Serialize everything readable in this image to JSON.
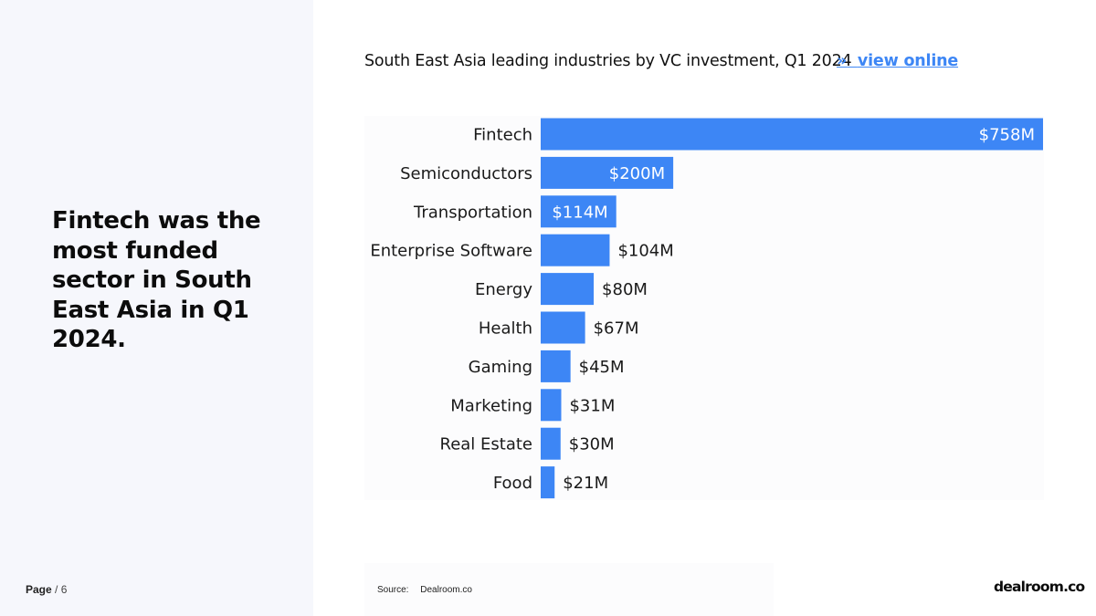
{
  "headline": "Fintech was the most funded sector in South East Asia in Q1 2024.",
  "page": {
    "label": "Page",
    "separator": "/",
    "total": "6"
  },
  "chart_title": "South East Asia leading industries by VC investment, Q1 2024",
  "view_online": {
    "arrow": "»",
    "label": "view online"
  },
  "source": {
    "label": "Source:",
    "value": "Dealroom.co"
  },
  "logo": "dealroom.co",
  "colors": {
    "bar": "#3d86f5",
    "panel": "#f6f7fc",
    "link": "#3d86f5"
  },
  "chart_data": {
    "type": "bar",
    "orientation": "horizontal",
    "title": "South East Asia leading industries by VC investment, Q1 2024",
    "xlabel": "",
    "ylabel": "",
    "unit": "$M",
    "categories": [
      "Fintech",
      "Semiconductors",
      "Transportation",
      "Enterprise Software",
      "Energy",
      "Health",
      "Gaming",
      "Marketing",
      "Real Estate",
      "Food"
    ],
    "values": [
      758,
      200,
      114,
      104,
      80,
      67,
      45,
      31,
      30,
      21
    ],
    "labels": [
      "$758M",
      "$200M",
      "$114M",
      "$104M",
      "$80M",
      "$67M",
      "$45M",
      "$31M",
      "$30M",
      "$21M"
    ],
    "xlim": [
      0,
      758
    ],
    "grid": false,
    "legend": "none"
  }
}
